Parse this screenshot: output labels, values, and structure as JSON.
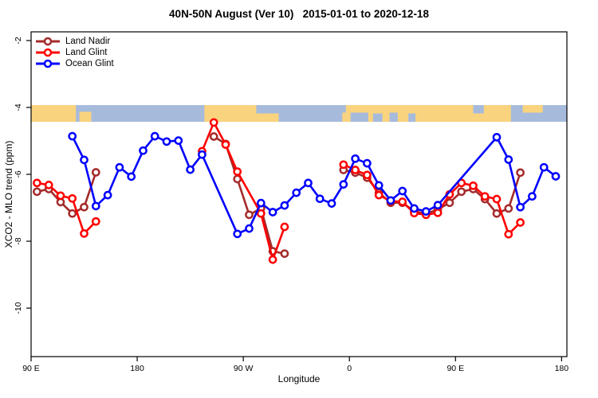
{
  "chart_data": {
    "type": "line",
    "title": "40N-50N August (Ver 10)   2015-01-01 to 2020-12-18",
    "xlabel": "Longitude",
    "ylabel": "XCO2 - MLO trend (ppm)",
    "x_range": [
      90,
      544.5
    ],
    "y_range": [
      -11.45,
      -1.74
    ],
    "x_ticks": [
      {
        "p": 90,
        "label": "90 E"
      },
      {
        "p": 180,
        "label": "180"
      },
      {
        "p": 270,
        "label": "90 W"
      },
      {
        "p": 360,
        "label": "0"
      },
      {
        "p": 450,
        "label": "90 E"
      },
      {
        "p": 540,
        "label": "180"
      }
    ],
    "y_ticks": [
      {
        "v": -2,
        "label": "-2"
      },
      {
        "v": -4,
        "label": "-4"
      },
      {
        "v": -6,
        "label": "-6"
      },
      {
        "v": -8,
        "label": "-8"
      },
      {
        "v": -10,
        "label": "-10"
      }
    ],
    "colors": {
      "land_nadir": "#A52A2A",
      "land_glint": "#FF0000",
      "ocean_glint": "#0000FF",
      "map_land": "#FAD37E",
      "map_water": "#A6BBDC",
      "axis": "#000000"
    },
    "map_band": {
      "comment_visible": "strip map of 40N-50N latitude band drawn across plot",
      "v_top": -3.93,
      "v_bottom": -4.43,
      "land": [
        {
          "p0": 90,
          "p1": 128,
          "part": "full",
          "f": 1
        },
        {
          "p0": 131,
          "p1": 141,
          "part": "bottom",
          "f": 0.6
        },
        {
          "p0": 237,
          "p1": 300,
          "part": "full",
          "f": 1
        },
        {
          "p0": 354,
          "p1": 497,
          "part": "full",
          "f": 1
        },
        {
          "p0": 507,
          "p1": 524,
          "part": "top",
          "f": 0.45
        }
      ],
      "water_patches": [
        {
          "p0": 281,
          "p1": 300,
          "part": "top",
          "f": 0.5
        },
        {
          "p0": 351,
          "p1": 357,
          "part": "top",
          "f": 0.45
        },
        {
          "p0": 361,
          "p1": 376,
          "part": "bottom",
          "f": 0.55
        },
        {
          "p0": 380,
          "p1": 388,
          "part": "bottom",
          "f": 0.5
        },
        {
          "p0": 394,
          "p1": 401,
          "part": "bottom",
          "f": 0.55
        },
        {
          "p0": 410,
          "p1": 416,
          "part": "bottom",
          "f": 0.5
        },
        {
          "p0": 465,
          "p1": 474,
          "part": "top",
          "f": 0.5
        }
      ]
    },
    "series": [
      {
        "name": "Land Nadir",
        "color_key": "land_nadir",
        "segments": [
          [
            [
              95,
              -6.52
            ],
            [
              105,
              -6.44
            ],
            [
              115,
              -6.83
            ],
            [
              125,
              -7.17
            ],
            [
              135,
              -6.98
            ],
            [
              145,
              -5.94
            ]
          ],
          [
            [
              245,
              -4.87
            ],
            [
              255,
              -5.09
            ],
            [
              265,
              -6.14
            ],
            [
              275,
              -7.21
            ],
            [
              285,
              -7.02
            ],
            [
              295,
              -8.3
            ],
            [
              305,
              -8.37
            ]
          ],
          [
            [
              355,
              -5.87
            ],
            [
              365,
              -5.95
            ],
            [
              375,
              -6.1
            ],
            [
              385,
              -6.55
            ],
            [
              395,
              -6.85
            ],
            [
              405,
              -6.85
            ],
            [
              415,
              -7.1
            ],
            [
              425,
              -7.18
            ],
            [
              435,
              -7.05
            ],
            [
              445,
              -6.85
            ],
            [
              455,
              -6.52
            ],
            [
              465,
              -6.44
            ],
            [
              475,
              -6.74
            ],
            [
              485,
              -7.17
            ],
            [
              495,
              -7.02
            ],
            [
              505,
              -5.95
            ]
          ]
        ]
      },
      {
        "name": "Land Glint",
        "color_key": "land_glint",
        "segments": [
          [
            [
              95,
              -6.26
            ],
            [
              105,
              -6.32
            ],
            [
              115,
              -6.64
            ],
            [
              125,
              -6.72
            ],
            [
              135,
              -7.77
            ],
            [
              145,
              -7.41
            ]
          ],
          [
            [
              235,
              -5.31
            ],
            [
              245,
              -4.45
            ],
            [
              255,
              -5.11
            ],
            [
              265,
              -5.92
            ],
            [
              285,
              -7.17
            ],
            [
              295,
              -8.55
            ],
            [
              305,
              -7.57
            ]
          ],
          [
            [
              355,
              -5.71
            ],
            [
              365,
              -5.87
            ],
            [
              375,
              -6.02
            ],
            [
              385,
              -6.62
            ],
            [
              395,
              -6.8
            ],
            [
              405,
              -6.82
            ],
            [
              415,
              -7.16
            ],
            [
              425,
              -7.21
            ],
            [
              435,
              -7.15
            ],
            [
              445,
              -6.6
            ],
            [
              455,
              -6.26
            ],
            [
              465,
              -6.34
            ],
            [
              475,
              -6.66
            ],
            [
              485,
              -6.74
            ],
            [
              495,
              -7.79
            ],
            [
              505,
              -7.44
            ]
          ]
        ]
      },
      {
        "name": "Ocean Glint",
        "color_key": "ocean_glint",
        "segments": [
          [
            [
              125,
              -4.86
            ],
            [
              135,
              -5.57
            ],
            [
              145,
              -6.95
            ],
            [
              155,
              -6.62
            ],
            [
              165,
              -5.79
            ],
            [
              175,
              -6.07
            ],
            [
              185,
              -5.29
            ],
            [
              195,
              -4.86
            ],
            [
              205,
              -5.02
            ],
            [
              215,
              -4.99
            ],
            [
              225,
              -5.86
            ],
            [
              235,
              -5.41
            ],
            [
              265,
              -7.78
            ],
            [
              275,
              -7.62
            ],
            [
              285,
              -6.86
            ],
            [
              295,
              -7.13
            ],
            [
              305,
              -6.93
            ],
            [
              315,
              -6.55
            ],
            [
              325,
              -6.26
            ],
            [
              335,
              -6.73
            ],
            [
              345,
              -6.87
            ],
            [
              355,
              -6.3
            ],
            [
              365,
              -5.53
            ],
            [
              375,
              -5.67
            ],
            [
              385,
              -6.33
            ],
            [
              395,
              -6.78
            ],
            [
              405,
              -6.5
            ],
            [
              415,
              -7.02
            ],
            [
              425,
              -7.11
            ],
            [
              435,
              -6.92
            ],
            [
              485,
              -4.89
            ],
            [
              495,
              -5.56
            ],
            [
              505,
              -6.98
            ],
            [
              515,
              -6.66
            ],
            [
              525,
              -5.79
            ],
            [
              535,
              -6.06
            ]
          ]
        ]
      }
    ],
    "legend": {
      "position": "top-left",
      "entries": [
        "Land Nadir",
        "Land Glint",
        "Ocean Glint"
      ]
    }
  }
}
